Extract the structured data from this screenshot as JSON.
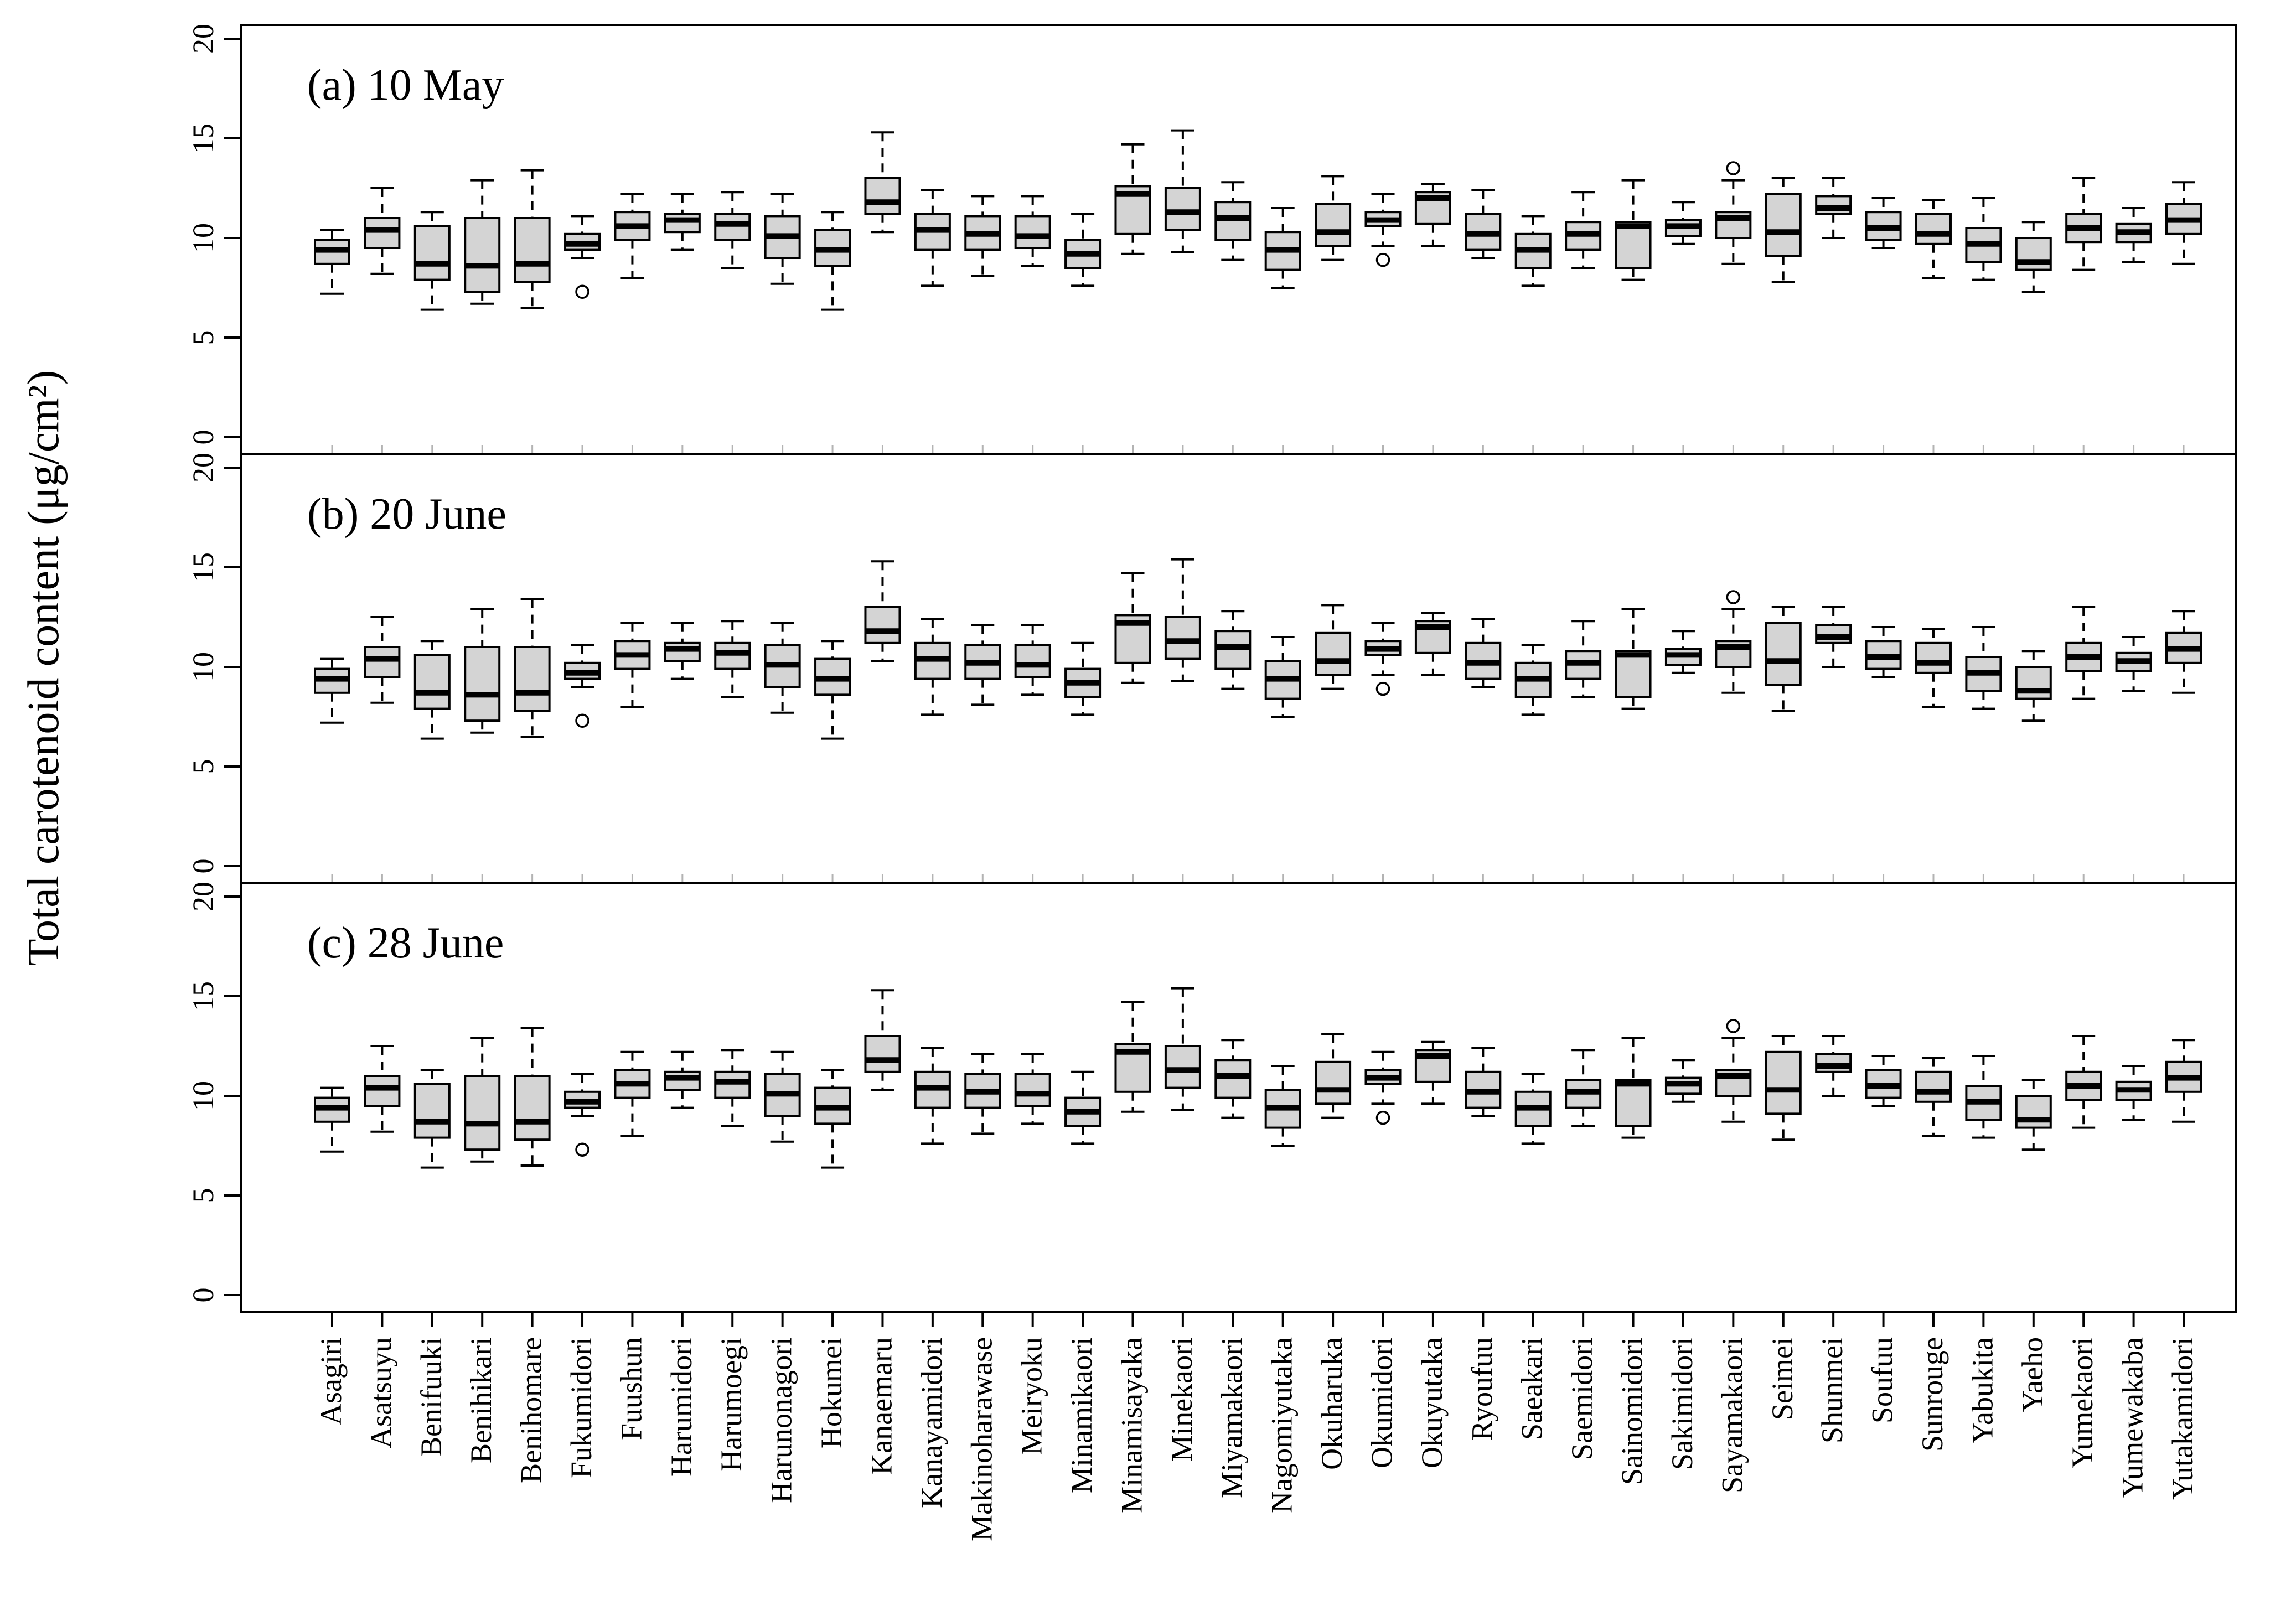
{
  "figure": {
    "background": "#ffffff",
    "description_visible_text_only": true
  },
  "chart_data": {
    "type": "boxplot",
    "ylabel": "Total carotenoid content (μg/cm²)",
    "xlabel": "",
    "ylim": [
      0,
      20
    ],
    "yticks": [
      0,
      5,
      10,
      15,
      20
    ],
    "grid": false,
    "legend": null,
    "panels": [
      {
        "id": "a",
        "label": "(a) 10 May"
      },
      {
        "id": "b",
        "label": "(b) 20 June"
      },
      {
        "id": "c",
        "label": "(c) 28 June"
      }
    ],
    "categories": [
      "Asagiri",
      "Asatsuyu",
      "Benifuuki",
      "Benihikari",
      "Benihomare",
      "Fukumidori",
      "Fuushun",
      "Harumidori",
      "Harumoegi",
      "Harunonagori",
      "Hokumei",
      "Kanaemaru",
      "Kanayamidori",
      "Makinoharawase",
      "Meiryoku",
      "Minamikaori",
      "Minamisayaka",
      "Minekaori",
      "Miyamakaori",
      "Nagomiyutaka",
      "Okuharuka",
      "Okumidori",
      "Okuyutaka",
      "Ryoufuu",
      "Saeakari",
      "Saemidori",
      "Sainomidori",
      "Sakimidori",
      "Sayamakaori",
      "Seimei",
      "Shunmei",
      "Soufuu",
      "Sunrouge",
      "Yabukita",
      "Yaeho",
      "Yumekaori",
      "Yumewakaba",
      "Yutakamidori"
    ],
    "stats": [
      {
        "name": "Asagiri",
        "lo": 7.2,
        "q1": 8.7,
        "med": 9.4,
        "q3": 9.9,
        "hi": 10.4,
        "out": []
      },
      {
        "name": "Asatsuyu",
        "lo": 8.2,
        "q1": 9.5,
        "med": 10.4,
        "q3": 11.0,
        "hi": 12.5,
        "out": []
      },
      {
        "name": "Benifuuki",
        "lo": 6.4,
        "q1": 7.9,
        "med": 8.7,
        "q3": 10.6,
        "hi": 11.3,
        "out": []
      },
      {
        "name": "Benihikari",
        "lo": 6.7,
        "q1": 7.3,
        "med": 8.6,
        "q3": 11.0,
        "hi": 12.9,
        "out": []
      },
      {
        "name": "Benihomare",
        "lo": 6.5,
        "q1": 7.8,
        "med": 8.7,
        "q3": 11.0,
        "hi": 13.4,
        "out": []
      },
      {
        "name": "Fukumidori",
        "lo": 9.0,
        "q1": 9.4,
        "med": 9.7,
        "q3": 10.2,
        "hi": 11.1,
        "out": [
          7.3
        ]
      },
      {
        "name": "Fuushun",
        "lo": 8.0,
        "q1": 9.9,
        "med": 10.6,
        "q3": 11.3,
        "hi": 12.2,
        "out": []
      },
      {
        "name": "Harumidori",
        "lo": 9.4,
        "q1": 10.3,
        "med": 10.9,
        "q3": 11.2,
        "hi": 12.2,
        "out": []
      },
      {
        "name": "Harumoegi",
        "lo": 8.5,
        "q1": 9.9,
        "med": 10.7,
        "q3": 11.2,
        "hi": 12.3,
        "out": []
      },
      {
        "name": "Harunonagori",
        "lo": 7.7,
        "q1": 9.0,
        "med": 10.1,
        "q3": 11.1,
        "hi": 12.2,
        "out": []
      },
      {
        "name": "Hokumei",
        "lo": 6.4,
        "q1": 8.6,
        "med": 9.4,
        "q3": 10.4,
        "hi": 11.3,
        "out": []
      },
      {
        "name": "Kanaemaru",
        "lo": 10.3,
        "q1": 11.2,
        "med": 11.8,
        "q3": 13.0,
        "hi": 15.3,
        "out": []
      },
      {
        "name": "Kanayamidori",
        "lo": 7.6,
        "q1": 9.4,
        "med": 10.4,
        "q3": 11.2,
        "hi": 12.4,
        "out": []
      },
      {
        "name": "Makinoharawase",
        "lo": 8.1,
        "q1": 9.4,
        "med": 10.2,
        "q3": 11.1,
        "hi": 12.1,
        "out": []
      },
      {
        "name": "Meiryoku",
        "lo": 8.6,
        "q1": 9.5,
        "med": 10.1,
        "q3": 11.1,
        "hi": 12.1,
        "out": []
      },
      {
        "name": "Minamikaori",
        "lo": 7.6,
        "q1": 8.5,
        "med": 9.2,
        "q3": 9.9,
        "hi": 11.2,
        "out": []
      },
      {
        "name": "Minamisayaka",
        "lo": 9.2,
        "q1": 10.2,
        "med": 12.2,
        "q3": 12.6,
        "hi": 14.7,
        "out": []
      },
      {
        "name": "Minekaori",
        "lo": 9.3,
        "q1": 10.4,
        "med": 11.3,
        "q3": 12.5,
        "hi": 15.4,
        "out": []
      },
      {
        "name": "Miyamakaori",
        "lo": 8.9,
        "q1": 9.9,
        "med": 11.0,
        "q3": 11.8,
        "hi": 12.8,
        "out": []
      },
      {
        "name": "Nagomiyutaka",
        "lo": 7.5,
        "q1": 8.4,
        "med": 9.4,
        "q3": 10.3,
        "hi": 11.5,
        "out": []
      },
      {
        "name": "Okuharuka",
        "lo": 8.9,
        "q1": 9.6,
        "med": 10.3,
        "q3": 11.7,
        "hi": 13.1,
        "out": []
      },
      {
        "name": "Okumidori",
        "lo": 9.6,
        "q1": 10.6,
        "med": 10.9,
        "q3": 11.3,
        "hi": 12.2,
        "out": [
          8.9
        ]
      },
      {
        "name": "Okuyutaka",
        "lo": 9.6,
        "q1": 10.7,
        "med": 12.0,
        "q3": 12.3,
        "hi": 12.7,
        "out": []
      },
      {
        "name": "Ryoufuu",
        "lo": 9.0,
        "q1": 9.4,
        "med": 10.2,
        "q3": 11.2,
        "hi": 12.4,
        "out": []
      },
      {
        "name": "Saeakari",
        "lo": 7.6,
        "q1": 8.5,
        "med": 9.4,
        "q3": 10.2,
        "hi": 11.1,
        "out": []
      },
      {
        "name": "Saemidori",
        "lo": 8.5,
        "q1": 9.4,
        "med": 10.2,
        "q3": 10.8,
        "hi": 12.3,
        "out": []
      },
      {
        "name": "Sainomidori",
        "lo": 7.9,
        "q1": 8.5,
        "med": 10.6,
        "q3": 10.8,
        "hi": 12.9,
        "out": []
      },
      {
        "name": "Sakimidori",
        "lo": 9.7,
        "q1": 10.1,
        "med": 10.6,
        "q3": 10.9,
        "hi": 11.8,
        "out": []
      },
      {
        "name": "Sayamakaori",
        "lo": 8.7,
        "q1": 10.0,
        "med": 11.0,
        "q3": 11.3,
        "hi": 12.9,
        "out": [
          13.5
        ]
      },
      {
        "name": "Seimei",
        "lo": 7.8,
        "q1": 9.1,
        "med": 10.3,
        "q3": 12.2,
        "hi": 13.0,
        "out": []
      },
      {
        "name": "Shunmei",
        "lo": 10.0,
        "q1": 11.2,
        "med": 11.5,
        "q3": 12.1,
        "hi": 13.0,
        "out": []
      },
      {
        "name": "Soufuu",
        "lo": 9.5,
        "q1": 9.9,
        "med": 10.5,
        "q3": 11.3,
        "hi": 12.0,
        "out": []
      },
      {
        "name": "Sunrouge",
        "lo": 8.0,
        "q1": 9.7,
        "med": 10.2,
        "q3": 11.2,
        "hi": 11.9,
        "out": []
      },
      {
        "name": "Yabukita",
        "lo": 7.9,
        "q1": 8.8,
        "med": 9.7,
        "q3": 10.5,
        "hi": 12.0,
        "out": []
      },
      {
        "name": "Yaeho",
        "lo": 7.3,
        "q1": 8.4,
        "med": 8.8,
        "q3": 10.0,
        "hi": 10.8,
        "out": []
      },
      {
        "name": "Yumekaori",
        "lo": 8.4,
        "q1": 9.8,
        "med": 10.5,
        "q3": 11.2,
        "hi": 13.0,
        "out": []
      },
      {
        "name": "Yumewakaba",
        "lo": 8.8,
        "q1": 9.8,
        "med": 10.3,
        "q3": 10.7,
        "hi": 11.5,
        "out": []
      },
      {
        "name": "Yutakamidori",
        "lo": 8.7,
        "q1": 10.2,
        "med": 10.9,
        "q3": 11.7,
        "hi": 12.8,
        "out": []
      }
    ],
    "style": {
      "box_fill": "#d4d4d4",
      "line_color": "#000000",
      "background": "#ffffff",
      "minor_tick_color": "#b3b3b3",
      "whisker_dashed": true,
      "outlier_marker": "open-circle"
    }
  }
}
